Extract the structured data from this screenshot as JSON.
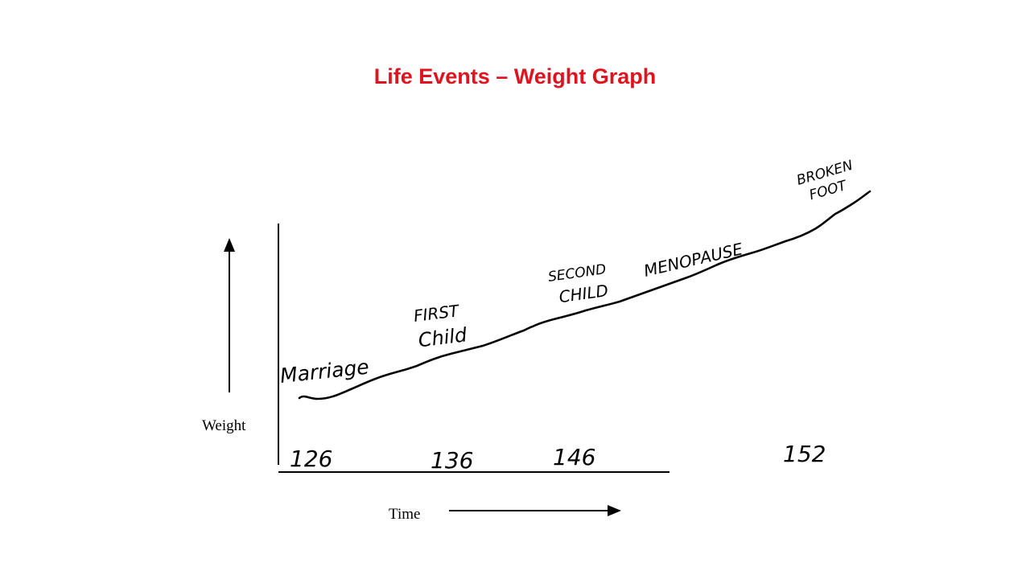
{
  "slide": {
    "title": "Life Events – Weight Graph",
    "title_color": "#e0141e"
  },
  "chart_data": {
    "type": "line",
    "title": "Life Events – Weight Graph",
    "xlabel": "Time",
    "ylabel": "Weight",
    "grid": false,
    "legend": "none",
    "series": [
      {
        "values": [
          126,
          136,
          146,
          152
        ]
      }
    ],
    "events": [
      "Marriage",
      "FIRST Child",
      "SECOND CHILD",
      "MENOPAUSE",
      "BROKEN FOOT"
    ],
    "weight_labels": [
      "126",
      "136",
      "146",
      "152"
    ]
  }
}
